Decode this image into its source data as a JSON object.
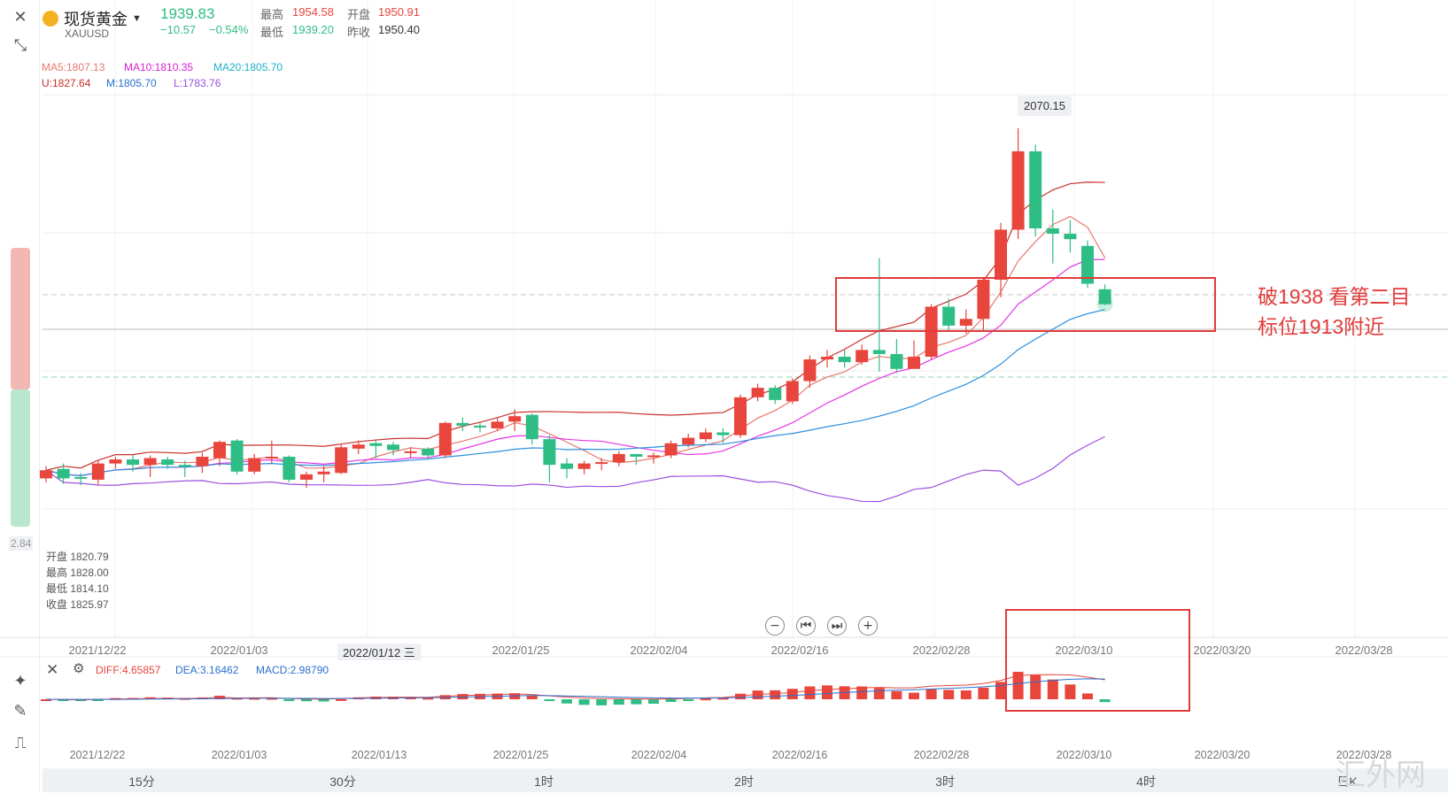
{
  "instrument": {
    "name": "现货黄金",
    "symbol": "XAUUSD",
    "price": "1939.83",
    "change": "−10.57",
    "change_pct": "−0.54%",
    "high_label": "最高",
    "high": "1954.58",
    "open_label": "开盘",
    "open": "1950.91",
    "low_label": "最低",
    "low": "1939.20",
    "prev_label": "昨收",
    "prev": "1950.40"
  },
  "indicators": {
    "ma5": "MA5:1807.13",
    "ma10": "MA10:1810.35",
    "ma20": "MA20:1805.70",
    "boll_u": "U:1827.64",
    "boll_m": "M:1805.70",
    "boll_l": "L:1783.76"
  },
  "ohlc_panel": {
    "open": "开盘 1820.79",
    "high": "最高 1828.00",
    "low": "最低 1814.10",
    "close": "收盘 1825.97"
  },
  "price_tag": "2.84",
  "peak_label": "2070.15",
  "annotation": {
    "line1": "破1938 看第二目",
    "line2": "标位1913附近"
  },
  "xaxis": {
    "labels": [
      "2021/12/22",
      "2022/01/03",
      "2022/01/12 三",
      "2022/01/25",
      "2022/02/04",
      "2022/02/16",
      "2022/02/28",
      "2022/03/10",
      "2022/03/20",
      "2022/03/28"
    ]
  },
  "macd": {
    "diff": "DIFF:4.65857",
    "dea": "DEA:3.16462",
    "macd": "MACD:2.98790"
  },
  "xaxis2": {
    "labels": [
      "2021/12/22",
      "2022/01/03",
      "2022/01/13",
      "2022/01/25",
      "2022/02/04",
      "2022/02/16",
      "2022/02/28",
      "2022/03/10",
      "2022/03/20",
      "2022/03/28"
    ]
  },
  "periods": [
    "15分",
    "30分",
    "1时",
    "2时",
    "3时",
    "4时",
    "日K"
  ],
  "watermark": "汇外网",
  "colors": {
    "up": "#e8453c",
    "down": "#2ebd85",
    "ma5": "#e8453c",
    "ma10": "#e535e5",
    "ma20": "#2a8fe0",
    "lower_band": "#9b4fe0",
    "annotation": "#e23b3b"
  },
  "chart_data": {
    "type": "candlestick",
    "candles": [
      [
        1811,
        1817,
        1820,
        1808
      ],
      [
        1818,
        1811,
        1822,
        1807
      ],
      [
        1812,
        1811,
        1815,
        1806
      ],
      [
        1810,
        1822,
        1824,
        1806
      ],
      [
        1822,
        1825,
        1827,
        1818
      ],
      [
        1825,
        1821,
        1828,
        1816
      ],
      [
        1821,
        1826,
        1828,
        1812
      ],
      [
        1825,
        1821,
        1827,
        1818
      ],
      [
        1821,
        1820,
        1824,
        1812
      ],
      [
        1820,
        1827,
        1830,
        1815
      ],
      [
        1826,
        1838,
        1839,
        1820
      ],
      [
        1839,
        1816,
        1840,
        1814
      ],
      [
        1816,
        1826,
        1829,
        1814
      ],
      [
        1826,
        1827,
        1839,
        1822
      ],
      [
        1827,
        1810,
        1828,
        1808
      ],
      [
        1810,
        1814,
        1816,
        1804
      ],
      [
        1814,
        1816,
        1820,
        1808
      ],
      [
        1815,
        1834,
        1836,
        1814
      ],
      [
        1833,
        1836,
        1839,
        1829
      ],
      [
        1837,
        1835,
        1839,
        1826
      ],
      [
        1836,
        1832,
        1838,
        1828
      ],
      [
        1830,
        1831,
        1834,
        1826
      ],
      [
        1833,
        1828,
        1834,
        1825
      ],
      [
        1828,
        1852,
        1853,
        1826
      ],
      [
        1852,
        1850,
        1856,
        1846
      ],
      [
        1850,
        1849,
        1852,
        1845
      ],
      [
        1848,
        1853,
        1856,
        1846
      ],
      [
        1853,
        1857,
        1862,
        1846
      ],
      [
        1858,
        1840,
        1859,
        1836
      ],
      [
        1840,
        1821,
        1843,
        1808
      ],
      [
        1822,
        1818,
        1826,
        1811
      ],
      [
        1818,
        1822,
        1824,
        1814
      ],
      [
        1822,
        1823,
        1826,
        1817
      ],
      [
        1823,
        1829,
        1831,
        1820
      ],
      [
        1829,
        1827,
        1829,
        1821
      ],
      [
        1827,
        1828,
        1830,
        1822
      ],
      [
        1828,
        1837,
        1839,
        1826
      ],
      [
        1836,
        1841,
        1844,
        1834
      ],
      [
        1840,
        1845,
        1848,
        1838
      ],
      [
        1845,
        1843,
        1848,
        1837
      ],
      [
        1843,
        1871,
        1873,
        1841
      ],
      [
        1871,
        1878,
        1881,
        1868
      ],
      [
        1878,
        1869,
        1880,
        1866
      ],
      [
        1868,
        1883,
        1885,
        1866
      ],
      [
        1883,
        1899,
        1902,
        1878
      ],
      [
        1899,
        1901,
        1906,
        1893
      ],
      [
        1901,
        1897,
        1906,
        1893
      ],
      [
        1897,
        1906,
        1910,
        1895
      ],
      [
        1906,
        1903,
        1974,
        1890
      ],
      [
        1903,
        1892,
        1914,
        1889
      ],
      [
        1892,
        1901,
        1913,
        1896
      ],
      [
        1901,
        1938,
        1940,
        1899
      ],
      [
        1938,
        1924,
        1944,
        1920
      ],
      [
        1924,
        1929,
        1936,
        1918
      ],
      [
        1929,
        1958,
        1960,
        1920
      ],
      [
        1958,
        1995,
        2000,
        1945
      ],
      [
        1995,
        2053,
        2070.15,
        1988
      ],
      [
        2053,
        1996,
        2058,
        1990
      ],
      [
        1996,
        1992,
        2010,
        1970
      ],
      [
        1992,
        1988,
        2002,
        1978
      ],
      [
        1983,
        1955,
        1987,
        1952
      ],
      [
        1950.91,
        1939.83,
        1954.58,
        1939.2
      ]
    ]
  }
}
